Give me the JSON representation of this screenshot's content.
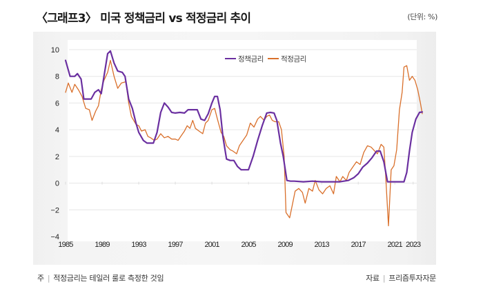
{
  "header": {
    "title": "〈그래프3〉 미국 정책금리 vs 적정금리 추이",
    "unit": "(단위: %)"
  },
  "footer": {
    "note_label": "주",
    "note_text": "적정금리는 테일러 룰로 측정한 것임",
    "source_label": "자료",
    "source_text": "프리즘투자자문"
  },
  "colors": {
    "policy_rate": "#6a2fa0",
    "taylor_rate": "#d96f2a",
    "grid": "#e6e6e6"
  },
  "chart_data": {
    "type": "line",
    "title": "미국 정책금리 vs 적정금리 추이",
    "xlabel": "",
    "ylabel": "%",
    "ylim": [
      -4,
      10
    ],
    "xlim": [
      1985,
      2024
    ],
    "yticks": [
      -4,
      -2,
      0,
      2,
      4,
      6,
      8,
      10
    ],
    "yticklabels": [
      "−4",
      "−2",
      "0",
      "2",
      "4",
      "6",
      "8",
      "10"
    ],
    "xticks": [
      1985,
      1989,
      1993,
      1997,
      2001,
      2005,
      2009,
      2013,
      2017,
      2021,
      2023
    ],
    "xticklabels": [
      "1985",
      "1989",
      "1993",
      "1997",
      "2001",
      "2005",
      "2009",
      "2013",
      "2017",
      "2021",
      "2023"
    ],
    "grid": true,
    "legend_position": "top-center",
    "series": [
      {
        "name": "정책금리",
        "points": [
          [
            1985.0,
            9.2
          ],
          [
            1985.5,
            8.0
          ],
          [
            1986.0,
            8.0
          ],
          [
            1986.3,
            8.2
          ],
          [
            1986.7,
            7.8
          ],
          [
            1987.0,
            6.3
          ],
          [
            1987.5,
            6.3
          ],
          [
            1987.8,
            6.3
          ],
          [
            1988.2,
            6.8
          ],
          [
            1988.6,
            7.0
          ],
          [
            1988.9,
            6.7
          ],
          [
            1989.2,
            8.0
          ],
          [
            1989.6,
            9.7
          ],
          [
            1989.9,
            9.9
          ],
          [
            1990.3,
            9.0
          ],
          [
            1990.7,
            8.4
          ],
          [
            1991.2,
            8.3
          ],
          [
            1991.5,
            8.0
          ],
          [
            1991.9,
            6.3
          ],
          [
            1992.3,
            5.6
          ],
          [
            1992.7,
            4.5
          ],
          [
            1993.0,
            3.8
          ],
          [
            1993.5,
            3.2
          ],
          [
            1993.9,
            3.0
          ],
          [
            1994.3,
            3.0
          ],
          [
            1994.6,
            3.0
          ],
          [
            1995.0,
            3.8
          ],
          [
            1995.4,
            5.3
          ],
          [
            1995.8,
            6.0
          ],
          [
            1996.2,
            5.7
          ],
          [
            1996.6,
            5.3
          ],
          [
            1997.0,
            5.25
          ],
          [
            1997.5,
            5.3
          ],
          [
            1998.0,
            5.25
          ],
          [
            1998.4,
            5.5
          ],
          [
            1998.9,
            5.5
          ],
          [
            1999.4,
            5.5
          ],
          [
            1999.8,
            4.8
          ],
          [
            2000.2,
            4.7
          ],
          [
            2000.6,
            5.2
          ],
          [
            2001.0,
            6.0
          ],
          [
            2001.3,
            6.5
          ],
          [
            2001.6,
            6.5
          ],
          [
            2001.9,
            5.5
          ],
          [
            2002.2,
            3.5
          ],
          [
            2002.6,
            1.8
          ],
          [
            2003.0,
            1.7
          ],
          [
            2003.4,
            1.7
          ],
          [
            2003.8,
            1.25
          ],
          [
            2004.2,
            1.0
          ],
          [
            2004.6,
            1.0
          ],
          [
            2005.0,
            1.0
          ],
          [
            2005.5,
            2.0
          ],
          [
            2006.0,
            3.2
          ],
          [
            2006.5,
            4.3
          ],
          [
            2007.0,
            5.25
          ],
          [
            2007.4,
            5.3
          ],
          [
            2007.8,
            5.25
          ],
          [
            2008.1,
            4.7
          ],
          [
            2008.5,
            3.0
          ],
          [
            2008.8,
            2.0
          ],
          [
            2009.2,
            0.2
          ],
          [
            2009.6,
            0.15
          ],
          [
            2010.0,
            0.15
          ],
          [
            2011.0,
            0.1
          ],
          [
            2012.0,
            0.15
          ],
          [
            2013.0,
            0.1
          ],
          [
            2014.0,
            0.1
          ],
          [
            2015.0,
            0.1
          ],
          [
            2015.9,
            0.2
          ],
          [
            2016.5,
            0.4
          ],
          [
            2017.0,
            0.7
          ],
          [
            2017.5,
            1.2
          ],
          [
            2018.0,
            1.5
          ],
          [
            2018.5,
            1.9
          ],
          [
            2019.0,
            2.4
          ],
          [
            2019.4,
            2.4
          ],
          [
            2019.8,
            1.6
          ],
          [
            2020.2,
            0.1
          ],
          [
            2020.7,
            0.1
          ],
          [
            2021.3,
            0.1
          ],
          [
            2022.0,
            0.1
          ],
          [
            2022.3,
            0.8
          ],
          [
            2022.6,
            2.4
          ],
          [
            2022.9,
            3.8
          ],
          [
            2023.3,
            4.8
          ],
          [
            2023.7,
            5.3
          ],
          [
            2024.0,
            5.33
          ]
        ]
      },
      {
        "name": "적정금리",
        "points": [
          [
            1985.0,
            6.8
          ],
          [
            1985.3,
            7.5
          ],
          [
            1985.7,
            6.8
          ],
          [
            1986.0,
            7.4
          ],
          [
            1986.4,
            7.0
          ],
          [
            1986.8,
            6.5
          ],
          [
            1987.2,
            5.6
          ],
          [
            1987.6,
            5.5
          ],
          [
            1987.9,
            4.7
          ],
          [
            1988.3,
            5.4
          ],
          [
            1988.6,
            5.8
          ],
          [
            1988.9,
            7.0
          ],
          [
            1989.2,
            7.7
          ],
          [
            1989.6,
            8.3
          ],
          [
            1989.9,
            9.2
          ],
          [
            1990.3,
            8.0
          ],
          [
            1990.7,
            7.1
          ],
          [
            1991.1,
            7.5
          ],
          [
            1991.6,
            7.6
          ],
          [
            1991.9,
            6.0
          ],
          [
            1992.2,
            5.0
          ],
          [
            1992.7,
            4.4
          ],
          [
            1993.0,
            4.3
          ],
          [
            1993.3,
            3.9
          ],
          [
            1993.7,
            4.0
          ],
          [
            1994.0,
            3.5
          ],
          [
            1994.3,
            3.4
          ],
          [
            1994.7,
            3.2
          ],
          [
            1995.0,
            3.3
          ],
          [
            1995.4,
            3.7
          ],
          [
            1995.8,
            3.4
          ],
          [
            1996.2,
            3.5
          ],
          [
            1996.6,
            3.3
          ],
          [
            1997.0,
            3.3
          ],
          [
            1997.3,
            3.2
          ],
          [
            1997.6,
            3.5
          ],
          [
            1998.0,
            3.9
          ],
          [
            1998.3,
            4.3
          ],
          [
            1998.6,
            4.1
          ],
          [
            1998.9,
            4.7
          ],
          [
            1999.2,
            4.1
          ],
          [
            1999.6,
            3.9
          ],
          [
            2000.0,
            3.7
          ],
          [
            2000.3,
            4.5
          ],
          [
            2000.6,
            4.7
          ],
          [
            2001.0,
            5.5
          ],
          [
            2001.3,
            5.6
          ],
          [
            2001.6,
            4.8
          ],
          [
            2002.0,
            3.8
          ],
          [
            2002.3,
            3.5
          ],
          [
            2002.6,
            2.8
          ],
          [
            2003.0,
            2.5
          ],
          [
            2003.3,
            2.4
          ],
          [
            2003.7,
            2.2
          ],
          [
            2004.0,
            2.8
          ],
          [
            2004.4,
            3.2
          ],
          [
            2004.8,
            3.6
          ],
          [
            2005.2,
            4.5
          ],
          [
            2005.6,
            4.2
          ],
          [
            2006.0,
            4.8
          ],
          [
            2006.3,
            5.0
          ],
          [
            2006.7,
            4.7
          ],
          [
            2007.0,
            5.0
          ],
          [
            2007.3,
            5.1
          ],
          [
            2007.6,
            4.7
          ],
          [
            2007.9,
            4.6
          ],
          [
            2008.3,
            4.6
          ],
          [
            2008.6,
            4.0
          ],
          [
            2008.9,
            2.0
          ],
          [
            2009.1,
            -2.2
          ],
          [
            2009.5,
            -2.6
          ],
          [
            2009.8,
            -1.6
          ],
          [
            2010.1,
            -0.6
          ],
          [
            2010.5,
            -0.4
          ],
          [
            2010.9,
            -0.7
          ],
          [
            2011.2,
            -1.5
          ],
          [
            2011.6,
            -0.4
          ],
          [
            2012.0,
            -0.6
          ],
          [
            2012.3,
            0.2
          ],
          [
            2012.7,
            -0.5
          ],
          [
            2013.1,
            -0.8
          ],
          [
            2013.5,
            -0.4
          ],
          [
            2013.9,
            -0.2
          ],
          [
            2014.3,
            -0.8
          ],
          [
            2014.6,
            0.5
          ],
          [
            2015.0,
            0.1
          ],
          [
            2015.3,
            0.5
          ],
          [
            2015.7,
            0.2
          ],
          [
            2016.0,
            0.8
          ],
          [
            2016.4,
            1.2
          ],
          [
            2016.8,
            1.6
          ],
          [
            2017.2,
            1.4
          ],
          [
            2017.6,
            2.3
          ],
          [
            2018.0,
            2.8
          ],
          [
            2018.4,
            2.7
          ],
          [
            2018.8,
            2.4
          ],
          [
            2019.1,
            2.2
          ],
          [
            2019.5,
            2.9
          ],
          [
            2019.8,
            2.7
          ],
          [
            2020.0,
            0.5
          ],
          [
            2020.3,
            -3.2
          ],
          [
            2020.6,
            1.0
          ],
          [
            2020.9,
            1.3
          ],
          [
            2021.2,
            2.5
          ],
          [
            2021.5,
            5.5
          ],
          [
            2021.8,
            6.8
          ],
          [
            2022.0,
            8.7
          ],
          [
            2022.3,
            8.8
          ],
          [
            2022.6,
            7.7
          ],
          [
            2022.9,
            8.0
          ],
          [
            2023.2,
            7.7
          ],
          [
            2023.5,
            7.0
          ],
          [
            2023.8,
            6.0
          ],
          [
            2024.0,
            5.2
          ]
        ]
      }
    ]
  }
}
